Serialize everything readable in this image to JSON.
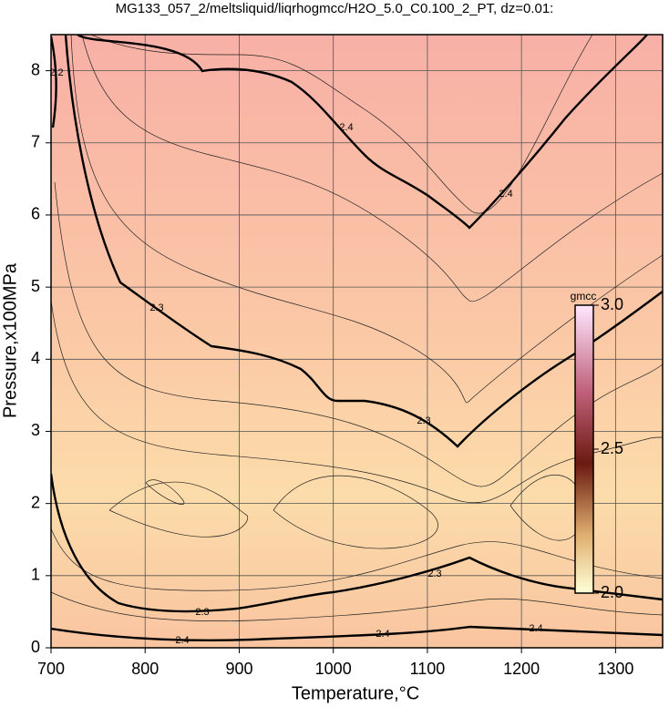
{
  "chart_data": {
    "type": "contour",
    "title": "MG133_057_2/meltsliquid/liqrhogmcc/H2O_5.0_C0.100_2_PT, dz=0.01:",
    "x_label": "Temperature,°C",
    "y_label": "Pressure,x100MPa",
    "xlim": [
      700,
      1350
    ],
    "ylim": [
      0,
      8.5
    ],
    "xticks": [
      700,
      800,
      900,
      1000,
      1100,
      1200,
      1300
    ],
    "yticks": [
      0,
      1,
      2,
      3,
      4,
      5,
      6,
      7,
      8
    ],
    "grid": true,
    "contours": [
      {
        "level": 2.2
      },
      {
        "level": 2.3
      },
      {
        "level": 2.3
      },
      {
        "level": 2.4
      },
      {
        "level": 2.4
      }
    ],
    "colorbar": {
      "label": "gmcc",
      "lim": [
        2,
        3
      ],
      "ticks": [
        {
          "value": 2,
          "label": "2.0"
        },
        2.5,
        {
          "value": 3,
          "label": "3.0"
        }
      ]
    }
  }
}
